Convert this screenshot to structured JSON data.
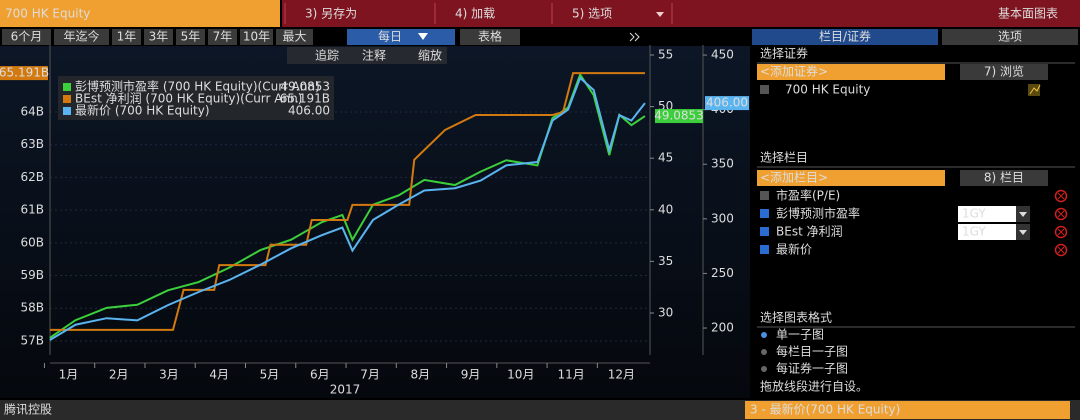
{
  "toolbar": {
    "ticker": "700 HK Equity",
    "actions": [
      "3) 另存为",
      "4) 加载",
      "5) 选项"
    ],
    "title": "基本面图表"
  },
  "periods": [
    "6个月",
    "年迄今",
    "1年",
    "3年",
    "5年",
    "7年",
    "10年",
    "最大"
  ],
  "frequency": "每日",
  "table_button": "表格",
  "tabs": [
    "栏目/证券",
    "选项"
  ],
  "chart_tools": [
    "追踪",
    "注释",
    "缩放"
  ],
  "chart": {
    "type": "line",
    "xlabel": "2017",
    "xlim": [
      0.633,
      12.57
    ],
    "xticks": [
      {
        "value": 1,
        "label": "1月"
      },
      {
        "value": 2,
        "label": "2月"
      },
      {
        "value": 3,
        "label": "3月"
      },
      {
        "value": 4,
        "label": "4月"
      },
      {
        "value": 5,
        "label": "5月"
      },
      {
        "value": 6,
        "label": "6月"
      },
      {
        "value": 7,
        "label": "7月"
      },
      {
        "value": 8,
        "label": "8月"
      },
      {
        "value": 9,
        "label": "9月"
      },
      {
        "value": 10,
        "label": "10月"
      },
      {
        "value": 11,
        "label": "11月"
      },
      {
        "value": 12,
        "label": "12月"
      }
    ],
    "ylim": [
      56.57,
      66.05
    ],
    "yticks": [
      {
        "value": 57,
        "label": "57B"
      },
      {
        "value": 58,
        "label": "58B"
      },
      {
        "value": 59,
        "label": "59B"
      },
      {
        "value": 60,
        "label": "60B"
      },
      {
        "value": 61,
        "label": "61B"
      },
      {
        "value": 62,
        "label": "62B"
      },
      {
        "value": 63,
        "label": "63B"
      },
      {
        "value": 64,
        "label": "64B"
      }
    ],
    "y2lim": [
      25.93,
      55.97
    ],
    "y2ticks": [
      30,
      35,
      40,
      45,
      50,
      55
    ],
    "y3lim": [
      175.3,
      459.2
    ],
    "y3ticks": [
      200,
      250,
      300,
      350,
      400,
      450
    ],
    "series": [
      {
        "name": "彭博预测市盈率 (700 HK Equity)(Curr Ann)",
        "color": "#3ccf3c",
        "axis": "y2",
        "x": [
          0.63,
          1.14,
          1.76,
          2.37,
          2.98,
          3.59,
          4.2,
          4.82,
          5.43,
          6.04,
          6.45,
          6.65,
          7.06,
          7.57,
          8.08,
          8.69,
          9.2,
          9.71,
          10.33,
          10.63,
          10.94,
          11.18,
          11.45,
          11.76,
          11.96,
          12.2,
          12.47
        ],
        "values": [
          27.6,
          29.3,
          30.5,
          30.8,
          32.2,
          33.0,
          34.4,
          36.1,
          37.1,
          38.8,
          39.5,
          37.1,
          40.5,
          41.4,
          42.9,
          42.4,
          43.7,
          44.8,
          44.3,
          48.9,
          49.9,
          53.1,
          51.1,
          45.3,
          49.2,
          48.2,
          49.0853
        ]
      },
      {
        "name": "BEst 净利润 (700 HK Equity)(Curr Ann)",
        "color": "#d27a10",
        "axis": "y",
        "x": [
          0.63,
          3.08,
          3.29,
          3.9,
          4.0,
          4.92,
          5.02,
          5.73,
          5.84,
          6.55,
          6.65,
          7.78,
          7.88,
          8.49,
          9.1,
          10.63,
          10.84,
          11.04,
          12.47
        ],
        "values": [
          57.34,
          57.34,
          58.56,
          58.56,
          59.32,
          59.32,
          59.94,
          59.94,
          60.7,
          60.7,
          61.16,
          61.16,
          62.54,
          63.45,
          63.91,
          63.91,
          64.0,
          65.191,
          65.191
        ],
        "value_labels": [
          null,
          null,
          null,
          null,
          null,
          null,
          null,
          null,
          null,
          null,
          null,
          null,
          null,
          null,
          null,
          null,
          null,
          null,
          "65.191B"
        ]
      },
      {
        "name": "最新价 (700 HK Equity)",
        "color": "#5ab4f0",
        "axis": "y3",
        "x": [
          0.63,
          1.14,
          1.76,
          2.37,
          2.98,
          3.59,
          4.2,
          4.82,
          5.43,
          6.04,
          6.45,
          6.65,
          7.06,
          7.57,
          8.08,
          8.69,
          9.2,
          9.71,
          10.33,
          10.63,
          10.94,
          11.18,
          11.45,
          11.76,
          11.96,
          12.2,
          12.47
        ],
        "values": [
          189,
          203,
          209,
          207,
          221,
          233,
          244,
          258,
          273,
          285,
          292,
          271,
          299,
          313,
          326,
          328,
          335,
          349,
          352,
          390,
          400,
          429,
          418,
          363,
          395,
          390,
          406
        ],
        "value_labels": [
          null,
          null,
          null,
          null,
          null,
          null,
          null,
          null,
          null,
          null,
          null,
          null,
          null,
          null,
          null,
          null,
          null,
          null,
          null,
          null,
          null,
          null,
          null,
          null,
          null,
          null,
          "406.00"
        ]
      }
    ]
  },
  "panel": {
    "securities_title": "选择证券",
    "add_security": "<添加证券>",
    "browse": "7) 浏览",
    "security": "700 HK Equity",
    "fields_title": "选择栏目",
    "add_field": "<添加栏目>",
    "fields_button": "8) 栏目",
    "fields": [
      {
        "label": "市盈率(P/E)"
      },
      {
        "label": "彭博预测市盈率",
        "period": "1GY"
      },
      {
        "label": "BEst 净利润",
        "period": "1GY"
      },
      {
        "label": "最新价"
      }
    ],
    "format_title": "选择图表格式",
    "formats": [
      "单一子图",
      "每栏目一子图",
      "每证券一子图"
    ],
    "hint": "拖放线段进行自设。"
  },
  "footer": {
    "name": "腾讯控股",
    "selection": "3 - 最新价(700 HK Equity)"
  }
}
